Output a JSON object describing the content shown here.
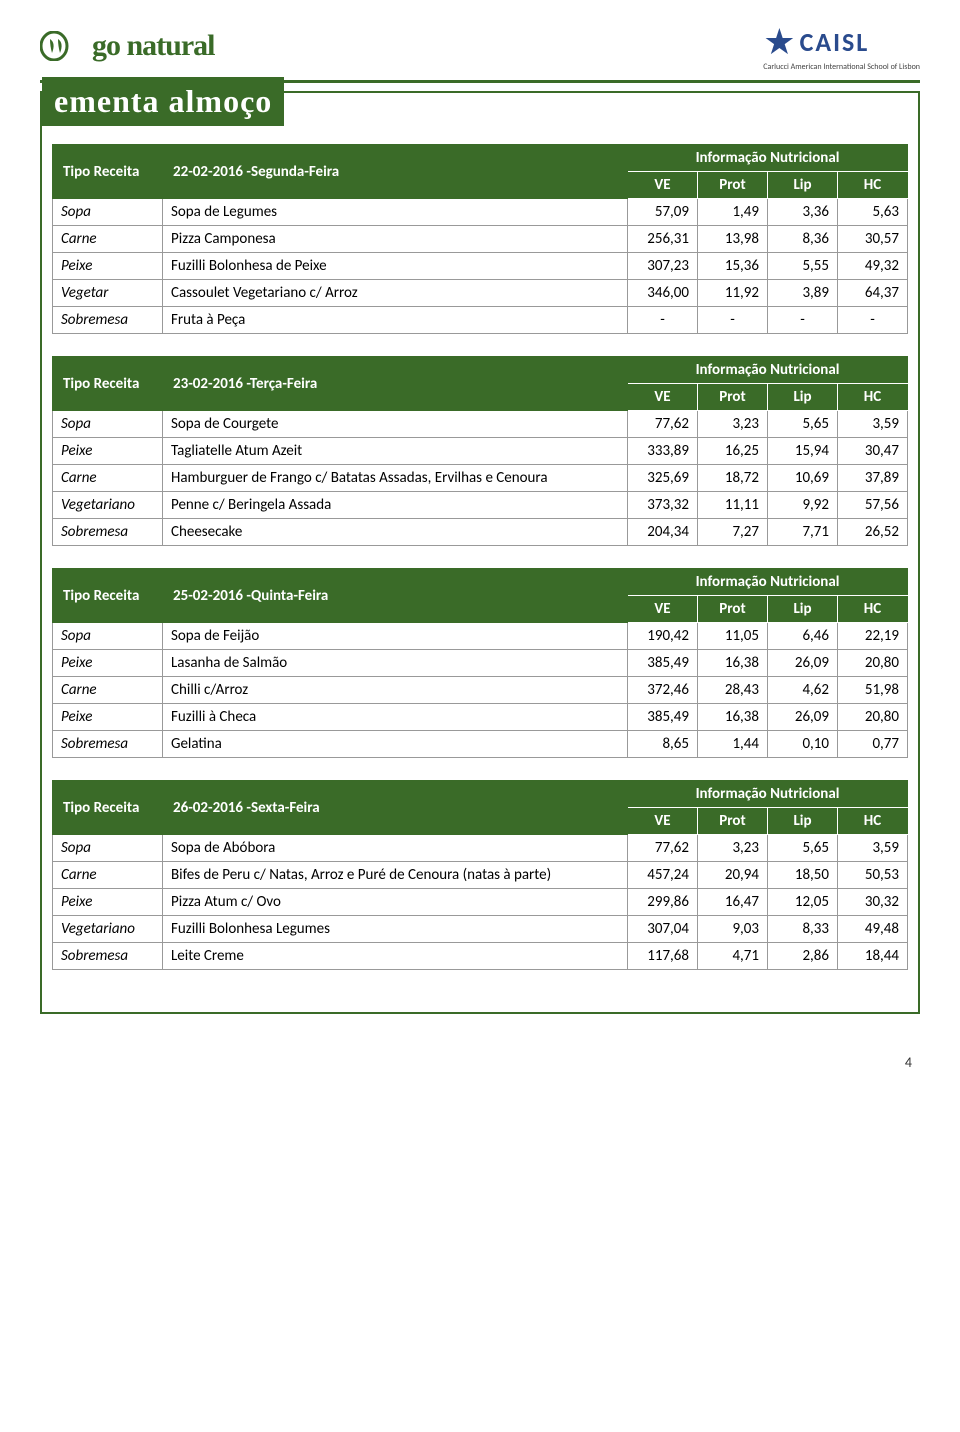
{
  "page_number": "4",
  "logo_left_text": "go natural",
  "logo_right_main": "CAISL",
  "logo_right_sub": "Carlucci American International School of Lisbon",
  "title": "ementa almoço",
  "colors": {
    "brand": "#3a6b28",
    "caisl": "#2a4b8d",
    "border": "#999999"
  },
  "col_labels": {
    "tipo": "Tipo Receita",
    "info": "Informação Nutricional",
    "ve": "VE",
    "prot": "Prot",
    "lip": "Lip",
    "hc": "HC"
  },
  "tables": [
    {
      "date": "22-02-2016 -Segunda-Feira",
      "rows": [
        {
          "cat": "Sopa",
          "item": "Sopa de Legumes",
          "ve": "57,09",
          "prot": "1,49",
          "lip": "3,36",
          "hc": "5,63"
        },
        {
          "cat": "Carne",
          "item": "Pizza Camponesa",
          "ve": "256,31",
          "prot": "13,98",
          "lip": "8,36",
          "hc": "30,57"
        },
        {
          "cat": "Peixe",
          "item": "Fuzilli Bolonhesa de Peixe",
          "ve": "307,23",
          "prot": "15,36",
          "lip": "5,55",
          "hc": "49,32"
        },
        {
          "cat": "Vegetar",
          "item": "Cassoulet Vegetariano c/ Arroz",
          "ve": "346,00",
          "prot": "11,92",
          "lip": "3,89",
          "hc": "64,37"
        },
        {
          "cat": "Sobremesa",
          "item": "Fruta à Peça",
          "ve": "-",
          "prot": "-",
          "lip": "-",
          "hc": "-"
        }
      ]
    },
    {
      "date": "23-02-2016 -Terça-Feira",
      "rows": [
        {
          "cat": "Sopa",
          "item": "Sopa de Courgete",
          "ve": "77,62",
          "prot": "3,23",
          "lip": "5,65",
          "hc": "3,59"
        },
        {
          "cat": "Peixe",
          "item": "Tagliatelle Atum Azeit",
          "ve": "333,89",
          "prot": "16,25",
          "lip": "15,94",
          "hc": "30,47"
        },
        {
          "cat": "Carne",
          "item": "Hamburguer de Frango c/ Batatas Assadas, Ervilhas e Cenoura",
          "ve": "325,69",
          "prot": "18,72",
          "lip": "10,69",
          "hc": "37,89"
        },
        {
          "cat": "Vegetariano",
          "item": "Penne c/ Beringela Assada",
          "ve": "373,32",
          "prot": "11,11",
          "lip": "9,92",
          "hc": "57,56"
        },
        {
          "cat": "Sobremesa",
          "item": "Cheesecake",
          "ve": "204,34",
          "prot": "7,27",
          "lip": "7,71",
          "hc": "26,52"
        }
      ]
    },
    {
      "date": "25-02-2016 -Quinta-Feira",
      "rows": [
        {
          "cat": "Sopa",
          "item": "Sopa de Feijão",
          "ve": "190,42",
          "prot": "11,05",
          "lip": "6,46",
          "hc": "22,19"
        },
        {
          "cat": "Peixe",
          "item": "Lasanha de Salmão",
          "ve": "385,49",
          "prot": "16,38",
          "lip": "26,09",
          "hc": "20,80"
        },
        {
          "cat": "Carne",
          "item": "Chilli c/Arroz",
          "ve": "372,46",
          "prot": "28,43",
          "lip": "4,62",
          "hc": "51,98"
        },
        {
          "cat": "Peixe",
          "item": "Fuzilli à Checa",
          "ve": "385,49",
          "prot": "16,38",
          "lip": "26,09",
          "hc": "20,80"
        },
        {
          "cat": "Sobremesa",
          "item": "Gelatina",
          "ve": "8,65",
          "prot": "1,44",
          "lip": "0,10",
          "hc": "0,77"
        }
      ]
    },
    {
      "date": "26-02-2016 -Sexta-Feira",
      "rows": [
        {
          "cat": "Sopa",
          "item": "Sopa de Abóbora",
          "ve": "77,62",
          "prot": "3,23",
          "lip": "5,65",
          "hc": "3,59"
        },
        {
          "cat": "Carne",
          "item": "Bifes de Peru c/ Natas, Arroz e Puré de Cenoura (natas à parte)",
          "ve": "457,24",
          "prot": "20,94",
          "lip": "18,50",
          "hc": "50,53"
        },
        {
          "cat": "Peixe",
          "item": "Pizza Atum c/ Ovo",
          "ve": "299,86",
          "prot": "16,47",
          "lip": "12,05",
          "hc": "30,32"
        },
        {
          "cat": "Vegetariano",
          "item": "Fuzilli Bolonhesa Legumes",
          "ve": "307,04",
          "prot": "9,03",
          "lip": "8,33",
          "hc": "49,48"
        },
        {
          "cat": "Sobremesa",
          "item": "Leite Creme",
          "ve": "117,68",
          "prot": "4,71",
          "lip": "2,86",
          "hc": "18,44"
        }
      ]
    }
  ]
}
